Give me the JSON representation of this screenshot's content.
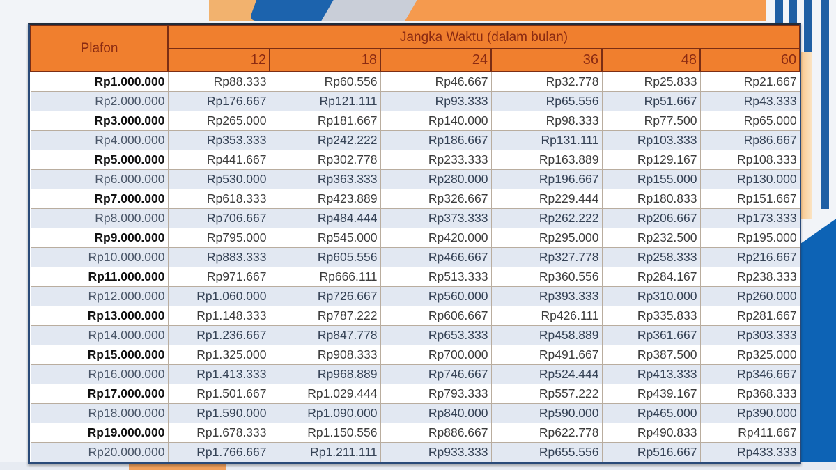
{
  "table": {
    "header": {
      "plafon_label": "Plafon",
      "term_group_label": "Jangka Waktu (dalam bulan)",
      "terms": [
        "12",
        "18",
        "24",
        "36",
        "48",
        "60"
      ]
    },
    "rows": [
      {
        "plafon": "Rp1.000.000",
        "values": [
          "Rp88.333",
          "Rp60.556",
          "Rp46.667",
          "Rp32.778",
          "Rp25.833",
          "Rp21.667"
        ]
      },
      {
        "plafon": "Rp2.000.000",
        "values": [
          "Rp176.667",
          "Rp121.111",
          "Rp93.333",
          "Rp65.556",
          "Rp51.667",
          "Rp43.333"
        ]
      },
      {
        "plafon": "Rp3.000.000",
        "values": [
          "Rp265.000",
          "Rp181.667",
          "Rp140.000",
          "Rp98.333",
          "Rp77.500",
          "Rp65.000"
        ]
      },
      {
        "plafon": "Rp4.000.000",
        "values": [
          "Rp353.333",
          "Rp242.222",
          "Rp186.667",
          "Rp131.111",
          "Rp103.333",
          "Rp86.667"
        ]
      },
      {
        "plafon": "Rp5.000.000",
        "values": [
          "Rp441.667",
          "Rp302.778",
          "Rp233.333",
          "Rp163.889",
          "Rp129.167",
          "Rp108.333"
        ]
      },
      {
        "plafon": "Rp6.000.000",
        "values": [
          "Rp530.000",
          "Rp363.333",
          "Rp280.000",
          "Rp196.667",
          "Rp155.000",
          "Rp130.000"
        ]
      },
      {
        "plafon": "Rp7.000.000",
        "values": [
          "Rp618.333",
          "Rp423.889",
          "Rp326.667",
          "Rp229.444",
          "Rp180.833",
          "Rp151.667"
        ]
      },
      {
        "plafon": "Rp8.000.000",
        "values": [
          "Rp706.667",
          "Rp484.444",
          "Rp373.333",
          "Rp262.222",
          "Rp206.667",
          "Rp173.333"
        ]
      },
      {
        "plafon": "Rp9.000.000",
        "values": [
          "Rp795.000",
          "Rp545.000",
          "Rp420.000",
          "Rp295.000",
          "Rp232.500",
          "Rp195.000"
        ]
      },
      {
        "plafon": "Rp10.000.000",
        "values": [
          "Rp883.333",
          "Rp605.556",
          "Rp466.667",
          "Rp327.778",
          "Rp258.333",
          "Rp216.667"
        ]
      },
      {
        "plafon": "Rp11.000.000",
        "values": [
          "Rp971.667",
          "Rp666.111",
          "Rp513.333",
          "Rp360.556",
          "Rp284.167",
          "Rp238.333"
        ]
      },
      {
        "plafon": "Rp12.000.000",
        "values": [
          "Rp1.060.000",
          "Rp726.667",
          "Rp560.000",
          "Rp393.333",
          "Rp310.000",
          "Rp260.000"
        ]
      },
      {
        "plafon": "Rp13.000.000",
        "values": [
          "Rp1.148.333",
          "Rp787.222",
          "Rp606.667",
          "Rp426.111",
          "Rp335.833",
          "Rp281.667"
        ]
      },
      {
        "plafon": "Rp14.000.000",
        "values": [
          "Rp1.236.667",
          "Rp847.778",
          "Rp653.333",
          "Rp458.889",
          "Rp361.667",
          "Rp303.333"
        ]
      },
      {
        "plafon": "Rp15.000.000",
        "values": [
          "Rp1.325.000",
          "Rp908.333",
          "Rp700.000",
          "Rp491.667",
          "Rp387.500",
          "Rp325.000"
        ]
      },
      {
        "plafon": "Rp16.000.000",
        "values": [
          "Rp1.413.333",
          "Rp968.889",
          "Rp746.667",
          "Rp524.444",
          "Rp413.333",
          "Rp346.667"
        ]
      },
      {
        "plafon": "Rp17.000.000",
        "values": [
          "Rp1.501.667",
          "Rp1.029.444",
          "Rp793.333",
          "Rp557.222",
          "Rp439.167",
          "Rp368.333"
        ]
      },
      {
        "plafon": "Rp18.000.000",
        "values": [
          "Rp1.590.000",
          "Rp1.090.000",
          "Rp840.000",
          "Rp590.000",
          "Rp465.000",
          "Rp390.000"
        ]
      },
      {
        "plafon": "Rp19.000.000",
        "values": [
          "Rp1.678.333",
          "Rp1.150.556",
          "Rp886.667",
          "Rp622.778",
          "Rp490.833",
          "Rp411.667"
        ]
      },
      {
        "plafon": "Rp20.000.000",
        "values": [
          "Rp1.766.667",
          "Rp1.211.111",
          "Rp933.333",
          "Rp655.556",
          "Rp516.667",
          "Rp433.333"
        ]
      }
    ]
  },
  "colors": {
    "header_bg": "#f07f2e",
    "header_text": "#8a2a12",
    "row_alt_bg": "#e2e8f2",
    "frame": "#2a4a78",
    "bg_blue": "#0d63b5",
    "bg_orange": "#f59a4e"
  }
}
